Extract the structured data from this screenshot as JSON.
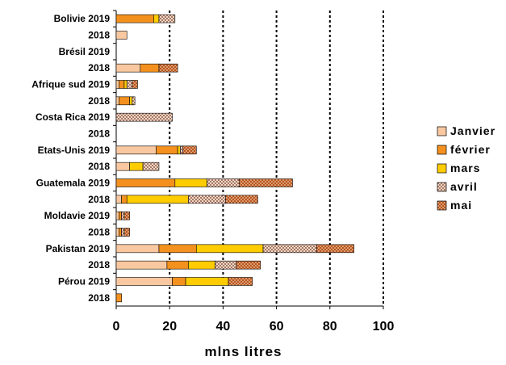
{
  "chart_data": {
    "type": "bar",
    "orientation": "horizontal",
    "stacked": true,
    "categories": [
      "Bolivie 2019",
      "2018",
      "Brésil 2019",
      "2018",
      "Afrique sud 2019",
      "2018",
      "Costa Rica 2019",
      "2018",
      "Etats-Unis 2019",
      "2018",
      "Guatemala 2019",
      "2018",
      "Moldavie 2019",
      "2018",
      "Pakistan 2019",
      "2018",
      "Pérou 2019",
      "2018"
    ],
    "series": [
      {
        "name": "Janvier",
        "color": "#f9c8a0",
        "pattern": "solid",
        "values": [
          0,
          4,
          0,
          9,
          1,
          1,
          0,
          0,
          15,
          5,
          0,
          2,
          1,
          1,
          16,
          19,
          21,
          0
        ]
      },
      {
        "name": "février",
        "color": "#f4911e",
        "pattern": "solid",
        "values": [
          14,
          0,
          0,
          7,
          2,
          4,
          0,
          0,
          8,
          0,
          22,
          2,
          1,
          1,
          14,
          8,
          5,
          2
        ]
      },
      {
        "name": "mars",
        "color": "#ffcc00",
        "pattern": "solid",
        "values": [
          2,
          0,
          0,
          0,
          1,
          1,
          0,
          0,
          1,
          5,
          12,
          23,
          0,
          0,
          25,
          10,
          16,
          0
        ]
      },
      {
        "name": "avril",
        "color": "#f6d7c5",
        "pattern": "checker",
        "values": [
          6,
          0,
          0,
          0,
          2,
          1,
          21,
          0,
          1,
          6,
          12,
          14,
          1,
          1,
          20,
          8,
          0,
          0
        ]
      },
      {
        "name": "mai",
        "color": "#b8541c",
        "pattern": "dots",
        "values": [
          0,
          0,
          0,
          7,
          2,
          0,
          0,
          0,
          5,
          0,
          20,
          12,
          2,
          2,
          14,
          9,
          9,
          0
        ]
      }
    ],
    "xlim": [
      0,
      100
    ],
    "xticks": [
      0,
      20,
      40,
      60,
      80,
      100
    ],
    "xlabel": "mlns litres",
    "ylabel": "",
    "title": "",
    "grid": "vertical dotted",
    "legend_position": "right"
  }
}
